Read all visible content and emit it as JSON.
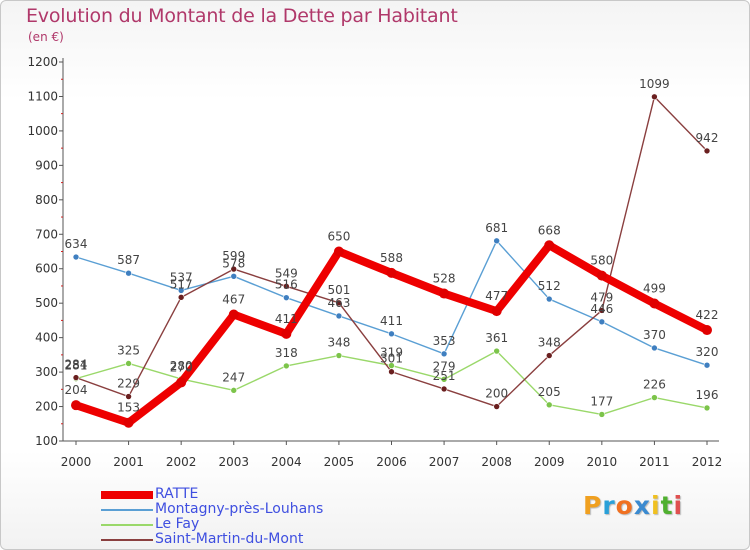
{
  "header": {
    "title": "Evolution du Montant de la Dette par Habitant",
    "subtitle": "(en €)"
  },
  "brand": {
    "letters": [
      "P",
      "r",
      "o",
      "x",
      "i",
      "t",
      "i"
    ],
    "colors": [
      "#f0a020",
      "#2aa0d8",
      "#f07020",
      "#3a8ad0",
      "#f0c020",
      "#50b030",
      "#e05050"
    ]
  },
  "chart_data": {
    "type": "line",
    "x": [
      "2000",
      "2001",
      "2002",
      "2003",
      "2004",
      "2005",
      "2006",
      "2007",
      "2008",
      "2009",
      "2010",
      "2011",
      "2012"
    ],
    "y_ticks": [
      100,
      200,
      300,
      400,
      500,
      600,
      700,
      800,
      900,
      1000,
      1100,
      1200
    ],
    "ylim": [
      100,
      1200
    ],
    "grid": false,
    "legend_position": "bottom-left",
    "series": [
      {
        "name": "RATTE",
        "color": "#ee0000",
        "point_color": "#e00000",
        "thick": true,
        "values": [
          204,
          153,
          270,
          467,
          411,
          650,
          588,
          528,
          477,
          668,
          580,
          499,
          422
        ],
        "labels": [
          "204",
          "153",
          "270",
          "467",
          "411",
          "650",
          "588",
          "528",
          "477",
          "668",
          "580",
          "499",
          "422"
        ]
      },
      {
        "name": "Montagny-près-Louhans",
        "color": "#5a9fd4",
        "point_color": "#3f7fc0",
        "thick": false,
        "values": [
          634,
          587,
          537,
          578,
          516,
          463,
          411,
          353,
          681,
          512,
          446,
          370,
          320
        ],
        "labels": [
          "634",
          "587",
          "537",
          "578",
          "516",
          "463",
          "411",
          "353",
          "681",
          "512",
          "446",
          "370",
          "320"
        ]
      },
      {
        "name": "Le Fay",
        "color": "#9ad86a",
        "point_color": "#7cc44a",
        "thick": false,
        "values": [
          281,
          325,
          280,
          247,
          318,
          348,
          319,
          279,
          361,
          205,
          177,
          226,
          196
        ],
        "labels": [
          "281",
          "325",
          "280",
          "247",
          "318",
          "348",
          "319",
          "279",
          "361",
          "205",
          "177",
          "226",
          "196"
        ]
      },
      {
        "name": "Saint-Martin-du-Mont",
        "color": "#8a3f3f",
        "point_color": "#6a1f1f",
        "thick": false,
        "values": [
          284,
          229,
          517,
          599,
          549,
          501,
          301,
          251,
          200,
          348,
          479,
          1099,
          942
        ],
        "labels": [
          "284",
          "229",
          "517",
          "599",
          "549",
          "501",
          "301",
          "251",
          "200",
          "348",
          "479",
          "1099",
          "942"
        ]
      }
    ]
  }
}
